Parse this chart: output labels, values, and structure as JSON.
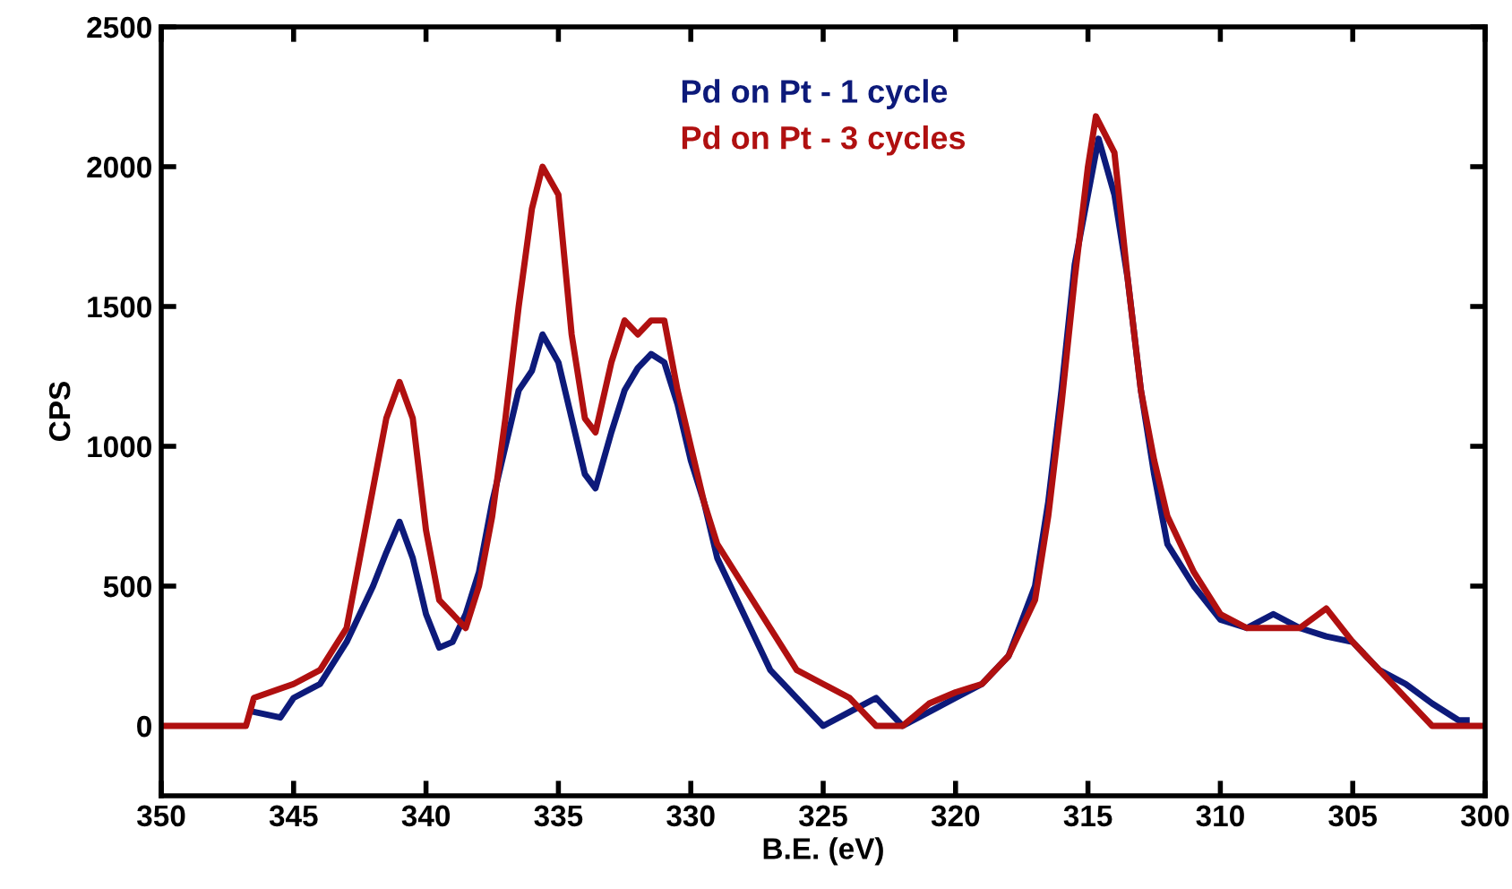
{
  "chart_data": {
    "type": "line",
    "xlabel": "B.E. (eV)",
    "ylabel": "CPS",
    "xlim": [
      350,
      300
    ],
    "ylim": [
      -250,
      2500
    ],
    "xticks": [
      350,
      345,
      340,
      335,
      330,
      325,
      320,
      315,
      310,
      305,
      300
    ],
    "yticks": [
      0,
      500,
      1000,
      1500,
      2000,
      2500
    ],
    "grid": false,
    "legend": "top",
    "marker": "none",
    "line_style": "solid",
    "series": [
      {
        "name": "Pd on Pt - 1 cycle",
        "color": "#0d1a7a",
        "x": [
          346.5,
          345.5,
          345,
          344,
          343,
          342,
          341.5,
          341,
          340.5,
          340,
          339.5,
          339,
          338.5,
          338,
          337.5,
          337,
          336.5,
          336,
          335.6,
          335,
          334.5,
          334,
          333.6,
          333,
          332.5,
          332,
          331.5,
          331,
          330.5,
          330,
          329.5,
          329,
          328,
          327,
          326,
          325,
          324,
          323,
          322,
          321,
          320,
          319,
          318,
          317,
          316.5,
          316,
          315.5,
          315,
          314.6,
          314,
          313.5,
          313,
          312.5,
          312,
          311,
          310,
          309,
          308,
          307,
          306,
          305,
          304,
          303,
          302,
          301,
          300.7
        ],
        "values": [
          50,
          30,
          100,
          150,
          300,
          500,
          620,
          730,
          600,
          400,
          280,
          300,
          400,
          550,
          800,
          1000,
          1200,
          1270,
          1400,
          1300,
          1100,
          900,
          850,
          1050,
          1200,
          1280,
          1330,
          1300,
          1150,
          950,
          800,
          600,
          400,
          200,
          100,
          0,
          50,
          100,
          0,
          50,
          100,
          150,
          250,
          500,
          800,
          1200,
          1650,
          1900,
          2100,
          1900,
          1600,
          1200,
          900,
          650,
          500,
          380,
          350,
          400,
          350,
          320,
          300,
          200,
          150,
          80,
          20,
          20
        ]
      },
      {
        "name": "Pd on Pt - 3 cycles",
        "color": "#b01010",
        "x": [
          350,
          346.8,
          346.5,
          345,
          344,
          343,
          342.5,
          342,
          341.5,
          341,
          340.5,
          340,
          339.5,
          339,
          338.5,
          338,
          337.5,
          337,
          336.5,
          336,
          335.6,
          335,
          334.5,
          334,
          333.6,
          333,
          332.5,
          332,
          331.5,
          331,
          330.5,
          330,
          329.5,
          329,
          328,
          327,
          326,
          325,
          324,
          323,
          322,
          321,
          320,
          319,
          318,
          317,
          316.5,
          316,
          315.5,
          315,
          314.7,
          314,
          313.5,
          313,
          312.5,
          312,
          311,
          310,
          309,
          308,
          307,
          306,
          305,
          304,
          303,
          302,
          301.7,
          300
        ],
        "values": [
          0,
          0,
          100,
          150,
          200,
          350,
          600,
          850,
          1100,
          1230,
          1100,
          700,
          450,
          400,
          350,
          500,
          750,
          1100,
          1500,
          1850,
          2000,
          1900,
          1400,
          1100,
          1050,
          1300,
          1450,
          1400,
          1450,
          1450,
          1200,
          1000,
          800,
          650,
          500,
          350,
          200,
          150,
          100,
          0,
          0,
          80,
          120,
          150,
          250,
          450,
          750,
          1150,
          1600,
          2000,
          2180,
          2050,
          1600,
          1200,
          950,
          750,
          550,
          400,
          350,
          350,
          350,
          420,
          300,
          200,
          100,
          0,
          0,
          0
        ]
      }
    ]
  }
}
